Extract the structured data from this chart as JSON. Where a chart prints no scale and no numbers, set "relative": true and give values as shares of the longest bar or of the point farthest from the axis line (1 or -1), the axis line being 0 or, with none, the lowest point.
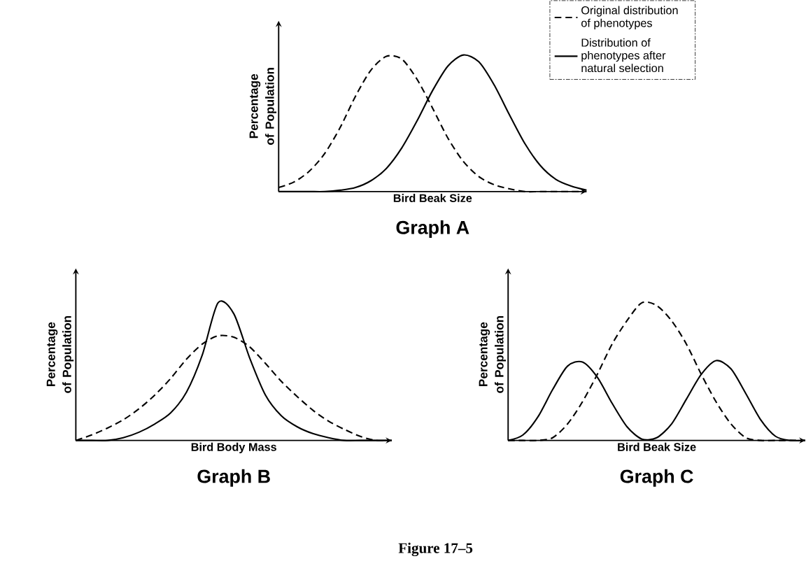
{
  "chart_data": [
    {
      "type": "line",
      "title": "Graph A",
      "xlabel": "Bird Beak Size",
      "ylabel": "Percentage of Population",
      "relative": true,
      "legend": "top right",
      "categories": [
        null,
        null,
        null,
        null,
        null,
        null,
        null,
        null,
        null,
        null,
        null,
        null,
        null,
        null,
        null,
        null,
        null,
        null,
        null,
        null,
        null
      ],
      "series": [
        {
          "name": "Original distribution of phenotypes",
          "color": "#000000",
          "line_style": "dashed",
          "values": [
            0.03,
            0.07,
            0.15,
            0.28,
            0.47,
            0.7,
            0.89,
            0.99,
            0.97,
            0.82,
            0.61,
            0.39,
            0.22,
            0.11,
            0.05,
            0.02,
            0,
            0,
            0,
            0,
            0
          ]
        },
        {
          "name": "Distribution of phenotypes after natural selection",
          "color": "#000000",
          "line_style": "solid",
          "values": [
            0,
            0,
            0,
            0,
            0.01,
            0.03,
            0.08,
            0.17,
            0.32,
            0.52,
            0.74,
            0.92,
            1.0,
            0.95,
            0.78,
            0.56,
            0.35,
            0.19,
            0.09,
            0.04,
            0.01
          ]
        }
      ]
    },
    {
      "type": "line",
      "title": "Graph B",
      "xlabel": "Bird Body Mass",
      "ylabel": "Percentage of Population",
      "relative": true,
      "categories": [
        null,
        null,
        null,
        null,
        null,
        null,
        null,
        null,
        null,
        null,
        null,
        null,
        null,
        null,
        null,
        null,
        null,
        null,
        null,
        null,
        null
      ],
      "series": [
        {
          "color": "#000000",
          "line_style": "dashed",
          "values": [
            0,
            0.04,
            0.09,
            0.15,
            0.23,
            0.33,
            0.45,
            0.59,
            0.7,
            0.76,
            0.75,
            0.68,
            0.56,
            0.43,
            0.32,
            0.22,
            0.14,
            0.08,
            0.03,
            0,
            0
          ]
        },
        {
          "color": "#000000",
          "line_style": "solid",
          "values": [
            0,
            0,
            0,
            0.02,
            0.06,
            0.12,
            0.2,
            0.35,
            0.62,
            1.0,
            0.92,
            0.6,
            0.33,
            0.18,
            0.1,
            0.05,
            0.02,
            0,
            0,
            0,
            0
          ]
        }
      ]
    },
    {
      "type": "line",
      "title": "Graph C",
      "xlabel": "Bird Beak Size",
      "ylabel": "Percentage of Population",
      "relative": true,
      "annotations": [
        "Figure 17–5"
      ],
      "categories": [
        null,
        null,
        null,
        null,
        null,
        null,
        null,
        null,
        null,
        null,
        null,
        null,
        null,
        null,
        null,
        null,
        null,
        null,
        null,
        null,
        null
      ],
      "series": [
        {
          "color": "#000000",
          "line_style": "dashed",
          "values": [
            0,
            0,
            0,
            0.02,
            0.12,
            0.28,
            0.48,
            0.7,
            0.87,
            1.0,
            0.98,
            0.87,
            0.7,
            0.48,
            0.28,
            0.12,
            0.02,
            0,
            0,
            0,
            0
          ]
        },
        {
          "color": "#000000",
          "line_style": "solid",
          "values": [
            0,
            0.04,
            0.17,
            0.37,
            0.54,
            0.57,
            0.46,
            0.27,
            0.1,
            0.01,
            0.02,
            0.12,
            0.3,
            0.48,
            0.58,
            0.52,
            0.34,
            0.15,
            0.03,
            0,
            0
          ]
        }
      ]
    }
  ]
}
